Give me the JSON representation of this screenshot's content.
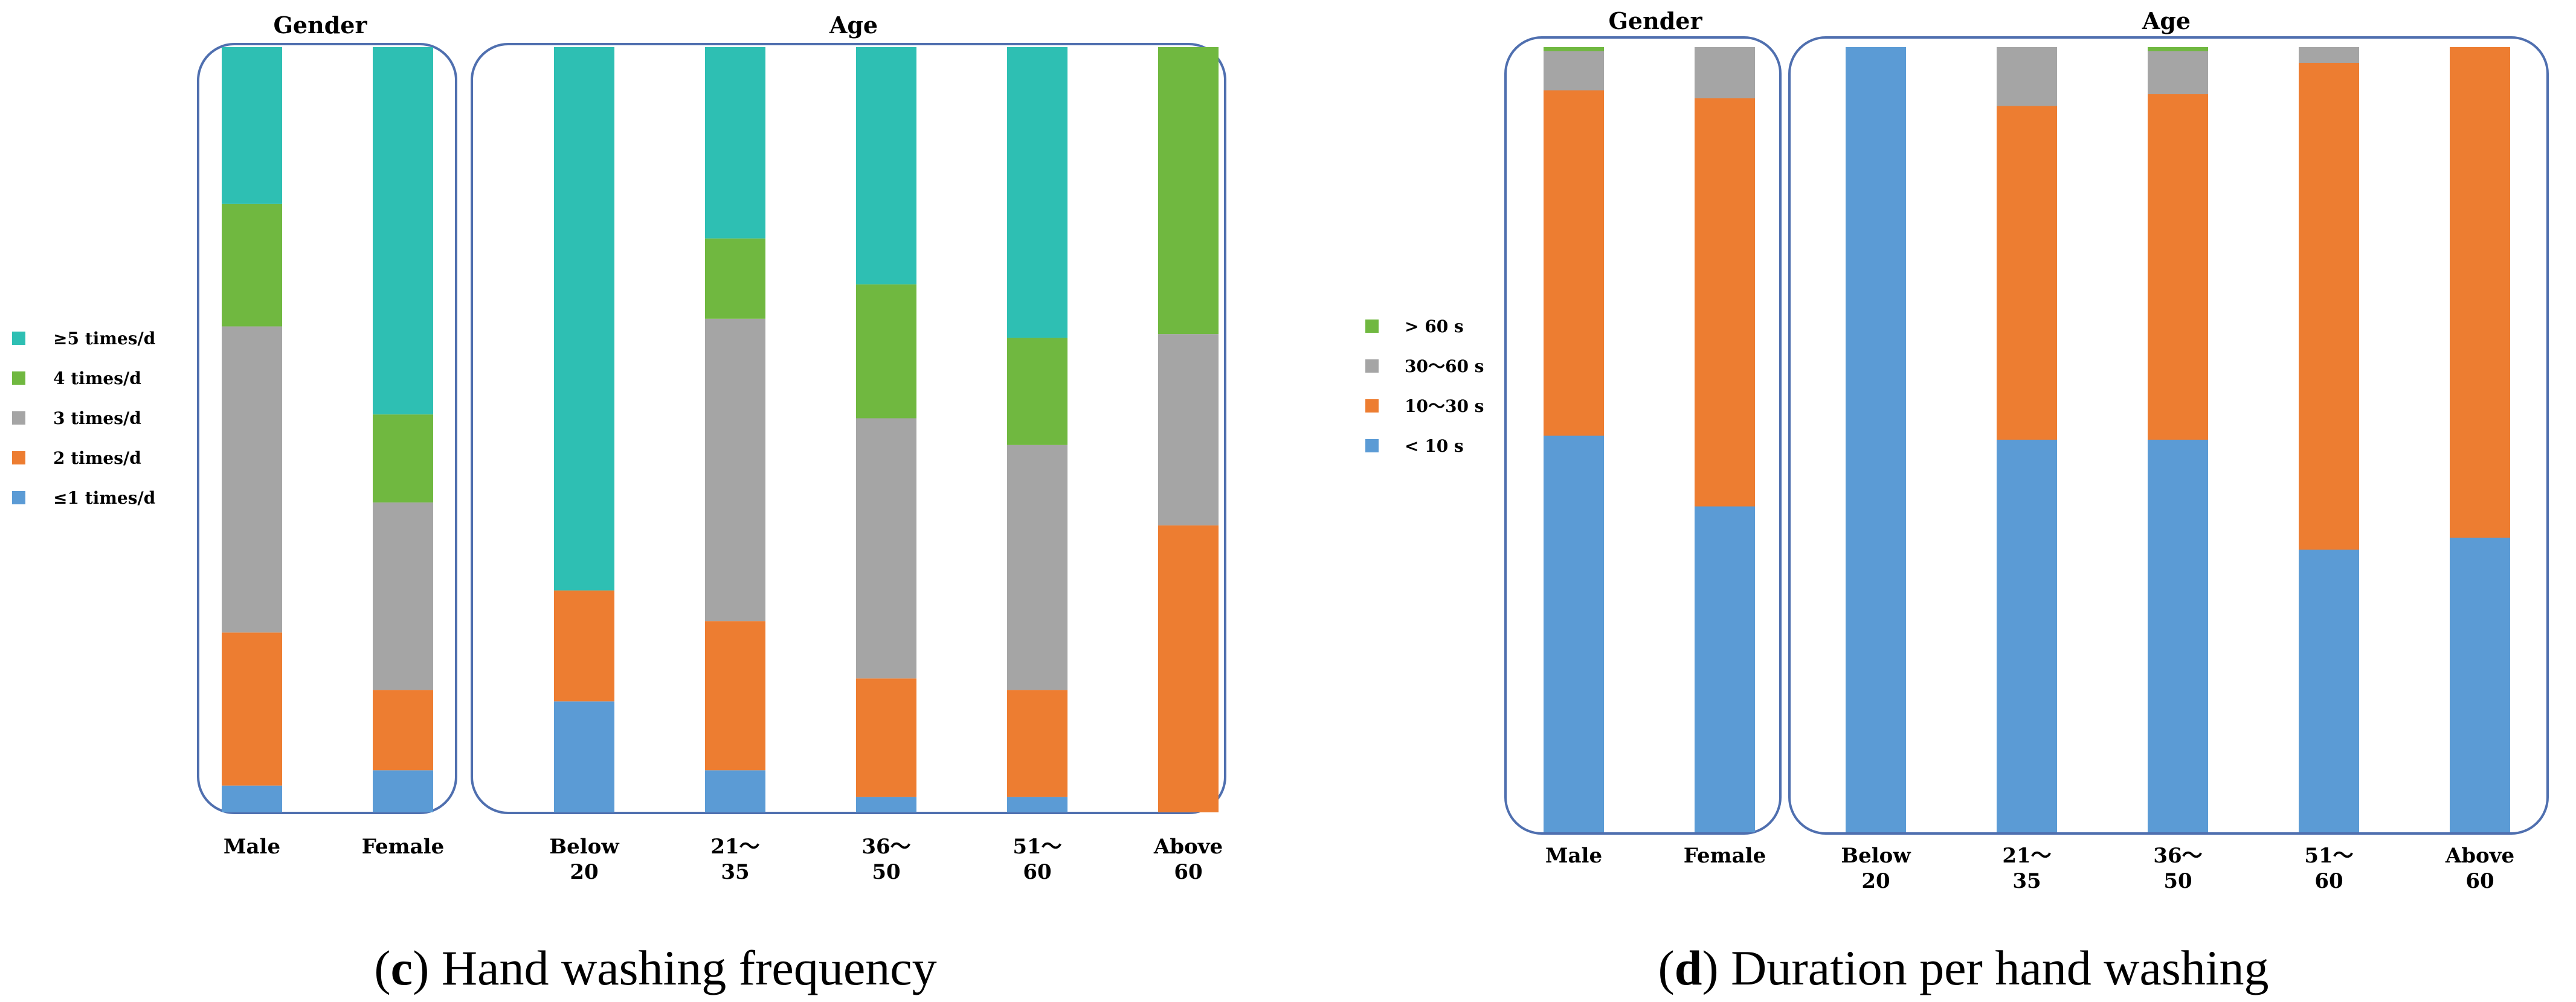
{
  "chart_data": [
    {
      "type": "bar",
      "stacked": true,
      "normalized": true,
      "panel": "c",
      "caption_letter": "c",
      "caption_text": " Hand washing frequency",
      "group_titles": [
        "Gender",
        "Age"
      ],
      "groups": [
        {
          "title": "Gender",
          "categories": [
            [
              "Male"
            ],
            [
              "Female"
            ]
          ]
        },
        {
          "title": "Age",
          "categories": [
            [
              "Below",
              "20"
            ],
            [
              "21～",
              "35"
            ],
            [
              "36～",
              "50"
            ],
            [
              "51～",
              "60"
            ],
            [
              "Above",
              "60"
            ]
          ]
        }
      ],
      "series": [
        {
          "name": "≤1 times/d",
          "color": "#5b9bd5",
          "values": [
            3.5,
            5.5,
            14.5,
            5.5,
            2.0,
            2.0,
            0.0
          ]
        },
        {
          "name": "2 times/d",
          "color": "#ed7d31",
          "values": [
            20.0,
            10.5,
            14.5,
            19.5,
            15.5,
            14.0,
            37.5
          ]
        },
        {
          "name": "3 times/d",
          "color": "#a5a5a5",
          "values": [
            40.0,
            24.5,
            0.0,
            39.5,
            34.0,
            32.0,
            25.0
          ]
        },
        {
          "name": "4 times/d",
          "color": "#70b840",
          "values": [
            16.0,
            11.5,
            0.0,
            10.5,
            17.5,
            14.0,
            37.5
          ]
        },
        {
          "name": "≥5 times/d",
          "color": "#2ebfb3",
          "values": [
            20.5,
            48.0,
            71.0,
            25.0,
            31.0,
            38.0,
            0.0
          ]
        }
      ],
      "legend": [
        "≥5 times/d",
        "4 times/d",
        "3 times/d",
        "2 times/d",
        "≤1 times/d"
      ],
      "ylim": [
        0,
        100
      ]
    },
    {
      "type": "bar",
      "stacked": true,
      "normalized": true,
      "panel": "d",
      "caption_letter": "d",
      "caption_text": " Duration per hand washing",
      "group_titles": [
        "Gender",
        "Age"
      ],
      "groups": [
        {
          "title": "Gender",
          "categories": [
            [
              "Male"
            ],
            [
              "Female"
            ]
          ]
        },
        {
          "title": "Age",
          "categories": [
            [
              "Below",
              "20"
            ],
            [
              "21～",
              "35"
            ],
            [
              "36～",
              "50"
            ],
            [
              "51～",
              "60"
            ],
            [
              "Above",
              "60"
            ]
          ]
        }
      ],
      "series": [
        {
          "name": "< 10 s",
          "color": "#5b9bd5",
          "values": [
            50.5,
            41.5,
            100.0,
            50.0,
            50.0,
            36.0,
            37.5
          ]
        },
        {
          "name": "10～30 s",
          "color": "#ed7d31",
          "values": [
            44.0,
            52.0,
            0.0,
            42.5,
            44.0,
            62.0,
            62.5
          ]
        },
        {
          "name": "30～60 s",
          "color": "#a5a5a5",
          "values": [
            5.0,
            6.5,
            0.0,
            7.5,
            5.5,
            2.0,
            0.0
          ]
        },
        {
          "name": "> 60 s",
          "color": "#70b840",
          "values": [
            0.5,
            0.0,
            0.0,
            0.0,
            0.5,
            0.0,
            0.0
          ]
        }
      ],
      "legend": [
        "> 60 s",
        "30～60 s",
        "10～30 s",
        "< 10 s"
      ],
      "ylim": [
        0,
        100
      ]
    }
  ]
}
